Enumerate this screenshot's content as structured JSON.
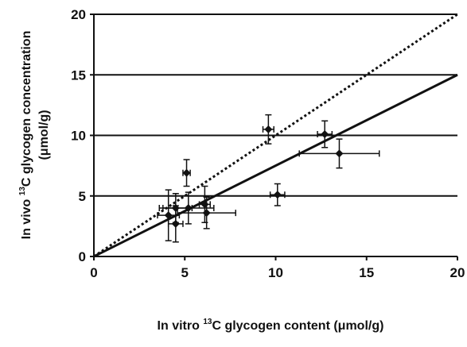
{
  "chart_data": {
    "type": "scatter",
    "x": [
      4.1,
      4.5,
      4.5,
      5.1,
      5.2,
      6.1,
      6.2,
      9.6,
      10.1,
      12.7,
      13.5
    ],
    "y": [
      3.4,
      2.7,
      4.0,
      6.9,
      4.0,
      4.3,
      3.6,
      10.5,
      5.1,
      10.1,
      8.5
    ],
    "x_error": [
      0.6,
      0.4,
      0.9,
      0.2,
      1.4,
      0.3,
      1.6,
      0.3,
      0.4,
      0.4,
      2.2
    ],
    "y_error": [
      2.1,
      1.5,
      1.2,
      1.1,
      1.3,
      1.5,
      1.3,
      1.2,
      0.9,
      1.1,
      1.2
    ],
    "color": "#111111",
    "lines": [
      {
        "x": [
          0,
          20
        ],
        "y": [
          0,
          20
        ],
        "style": "dotted"
      },
      {
        "x": [
          0,
          20
        ],
        "y": [
          0,
          15
        ],
        "style": "solid"
      }
    ],
    "xlim": [
      0,
      20
    ],
    "ylim": [
      0,
      20
    ],
    "xticks": [
      0,
      5,
      10,
      15,
      20
    ],
    "yticks": [
      0,
      5,
      10,
      15,
      20
    ],
    "grid": true,
    "xlabel": {
      "pre": "In vitro ",
      "sup": "13",
      "post": "C glycogen content (μmol/g)"
    },
    "ylabel": {
      "pre": "In vivo ",
      "sup": "13",
      "post": "C glycogen concentration",
      "line2": "(μmol/g)"
    }
  }
}
